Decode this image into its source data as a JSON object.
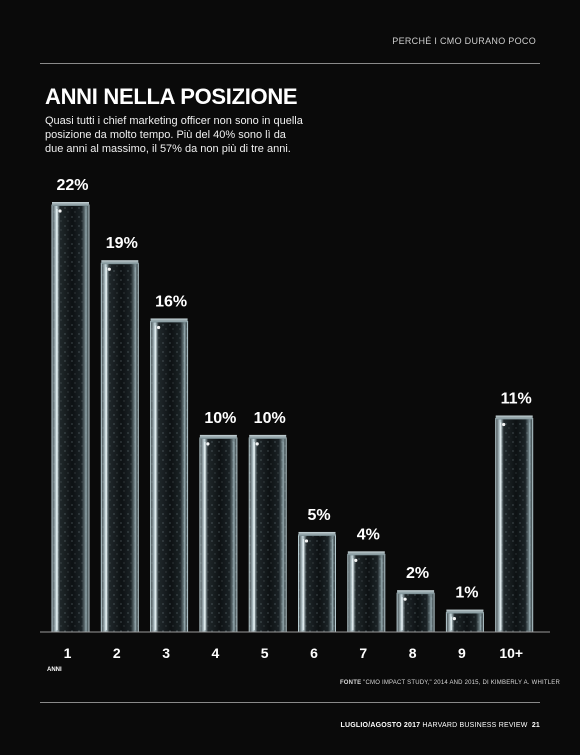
{
  "header": {
    "section_label": "PERCHÉ I CMO DURANO POCO"
  },
  "title": "ANNI NELLA POSIZIONE",
  "subtitle": "Quasi tutti i chief marketing officer non sono in quella posizione da molto tempo. Più del 40% sono lì da due anni al massimo, il 57% da non più di tre anni.",
  "source": {
    "label": "FONTE",
    "text": "\"CMO IMPACT STUDY,\" 2014 AND 2015, DI KIMBERLY A. WHITLER"
  },
  "footer": {
    "issue": "LUGLIO/AGOSTO 2017",
    "magazine": "HARVARD BUSINESS REVIEW",
    "page": "21"
  },
  "chart_data": {
    "type": "bar",
    "title": "ANNI NELLA POSIZIONE",
    "xlabel": "ANNI",
    "ylabel": "",
    "categories": [
      "1",
      "2",
      "3",
      "4",
      "5",
      "6",
      "7",
      "8",
      "9",
      "10+"
    ],
    "values": [
      22,
      19,
      16,
      10,
      10,
      5,
      4,
      2,
      1,
      11
    ],
    "value_labels": [
      "22%",
      "19%",
      "16%",
      "10%",
      "10%",
      "5%",
      "4%",
      "2%",
      "1%",
      "11%"
    ],
    "ylim": [
      0,
      22
    ],
    "grid": false,
    "legend": "none",
    "bar_style": "ice-block",
    "colors": {
      "background": "#0a0a0a",
      "text": "#ffffff",
      "bar_highlight": "#e8f2f5"
    }
  }
}
